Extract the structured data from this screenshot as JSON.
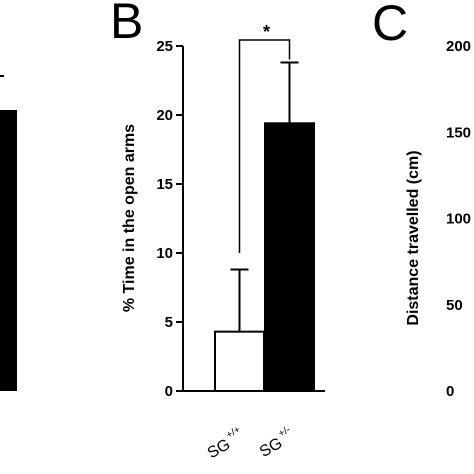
{
  "panels": {
    "a": {
      "bar_fill": "#000000"
    },
    "b": {
      "letter": "B"
    },
    "c": {
      "letter": "C",
      "ylabel": "Distance travelled (cm)",
      "tick_labels_visible": [
        "200",
        "150",
        "100",
        "50",
        "0"
      ]
    }
  },
  "chart_data": [
    {
      "panel": "B",
      "type": "bar",
      "title": "",
      "xlabel": "",
      "ylabel": "% Time in the open arms",
      "ylim": [
        0,
        25
      ],
      "yticks": [
        0,
        5,
        10,
        15,
        20,
        25
      ],
      "categories": [
        {
          "base": "SG",
          "sup": "+/+"
        },
        {
          "base": "SG",
          "sup": "+/-"
        }
      ],
      "values": [
        4.3,
        19.4
      ],
      "errors": [
        4.5,
        4.4
      ],
      "bar_colors": [
        "#ffffff",
        "#000000"
      ],
      "significance": {
        "label": "*",
        "between": [
          0,
          1
        ]
      },
      "grid": false,
      "legend": "none"
    }
  ]
}
